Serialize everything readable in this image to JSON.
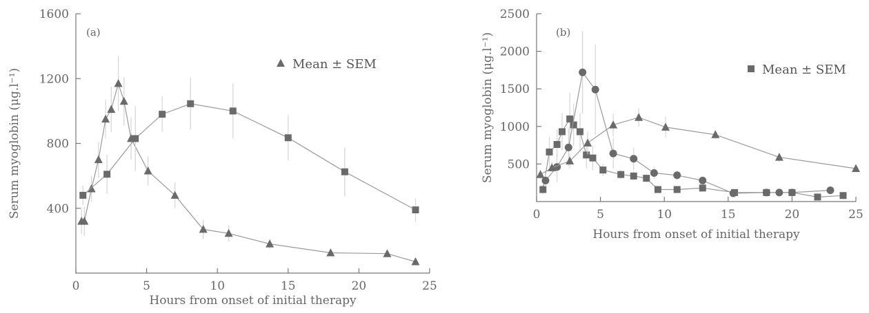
{
  "chart_data": [
    {
      "id": "a",
      "type": "line",
      "panel_label": "(a)",
      "xlabel": "Hours from onset of initial therapy",
      "ylabel": "Serum myoglobin (μg.l⁻¹)",
      "xlim": [
        0,
        25
      ],
      "ylim": [
        0,
        1600
      ],
      "xticks": [
        0,
        5,
        10,
        15,
        20,
        25
      ],
      "yticks": [
        400,
        800,
        1200,
        1600
      ],
      "legend": {
        "label": "Mean ± SEM",
        "marker": "triangle",
        "placement": "top-right"
      },
      "series": [
        {
          "marker": "triangle",
          "x": [
            0.4,
            0.6,
            1.1,
            1.6,
            2.1,
            2.5,
            3.0,
            3.4,
            3.9,
            5.1,
            7.0,
            9.0,
            10.8,
            13.7,
            18.0,
            22.0,
            24.0
          ],
          "y": [
            320,
            320,
            520,
            700,
            950,
            1010,
            1170,
            1060,
            830,
            630,
            480,
            270,
            245,
            180,
            125,
            120,
            70
          ],
          "err": [
            80,
            90,
            80,
            110,
            120,
            140,
            170,
            150,
            130,
            90,
            80,
            60,
            50,
            30,
            20,
            20,
            15
          ]
        },
        {
          "marker": "square",
          "x": [
            0.5,
            2.2,
            4.2,
            6.1,
            8.1,
            11.1,
            15.0,
            19.0,
            24.0
          ],
          "y": [
            480,
            610,
            830,
            980,
            1045,
            1000,
            835,
            625,
            390
          ],
          "err": [
            60,
            120,
            200,
            110,
            160,
            170,
            140,
            150,
            70
          ]
        }
      ]
    },
    {
      "id": "b",
      "type": "line",
      "panel_label": "(b)",
      "xlabel": "Hours from onset of initial therapy",
      "ylabel": "Serum myoglobin (μg.l⁻¹)",
      "xlim": [
        0,
        25
      ],
      "ylim": [
        0,
        2500
      ],
      "xticks": [
        0,
        5,
        10,
        15,
        20,
        25
      ],
      "yticks": [
        500,
        1000,
        1500,
        2000,
        2500
      ],
      "legend": {
        "label": "Mean ± SEM",
        "marker": "square",
        "placement": "top-right"
      },
      "series": [
        {
          "marker": "square",
          "x": [
            0.5,
            1.0,
            1.6,
            2.0,
            2.6,
            2.9,
            3.4,
            3.9,
            4.4,
            5.2,
            6.6,
            7.6,
            8.6,
            9.5,
            11.0,
            13.0,
            15.5,
            18.0,
            20.0,
            22.0,
            24.0
          ],
          "y": [
            160,
            660,
            760,
            930,
            1100,
            1020,
            930,
            620,
            580,
            420,
            360,
            340,
            310,
            160,
            160,
            180,
            120,
            120,
            120,
            60,
            80
          ],
          "err": [
            60,
            200,
            200,
            250,
            350,
            280,
            250,
            180,
            160,
            80,
            60,
            60,
            50,
            30,
            30,
            30,
            20,
            20,
            20,
            15,
            15
          ]
        },
        {
          "marker": "circle",
          "x": [
            0.7,
            1.6,
            2.5,
            3.6,
            4.6,
            6.0,
            7.6,
            9.2,
            11.0,
            13.0,
            15.4,
            18.0,
            19.0,
            20.0,
            23.0
          ],
          "y": [
            280,
            460,
            720,
            1720,
            1490,
            640,
            570,
            380,
            350,
            280,
            110,
            120,
            120,
            120,
            150
          ],
          "err": [
            80,
            200,
            250,
            550,
            600,
            200,
            150,
            80,
            60,
            50,
            30,
            20,
            20,
            20,
            20
          ]
        },
        {
          "marker": "triangle",
          "x": [
            0.3,
            1.2,
            2.6,
            4.0,
            6.0,
            8.0,
            10.1,
            14.0,
            19.0,
            25.0
          ],
          "y": [
            360,
            450,
            540,
            780,
            1020,
            1120,
            990,
            890,
            590,
            440
          ],
          "err": [
            60,
            80,
            100,
            150,
            150,
            120,
            140,
            60,
            60,
            40
          ]
        }
      ]
    }
  ]
}
